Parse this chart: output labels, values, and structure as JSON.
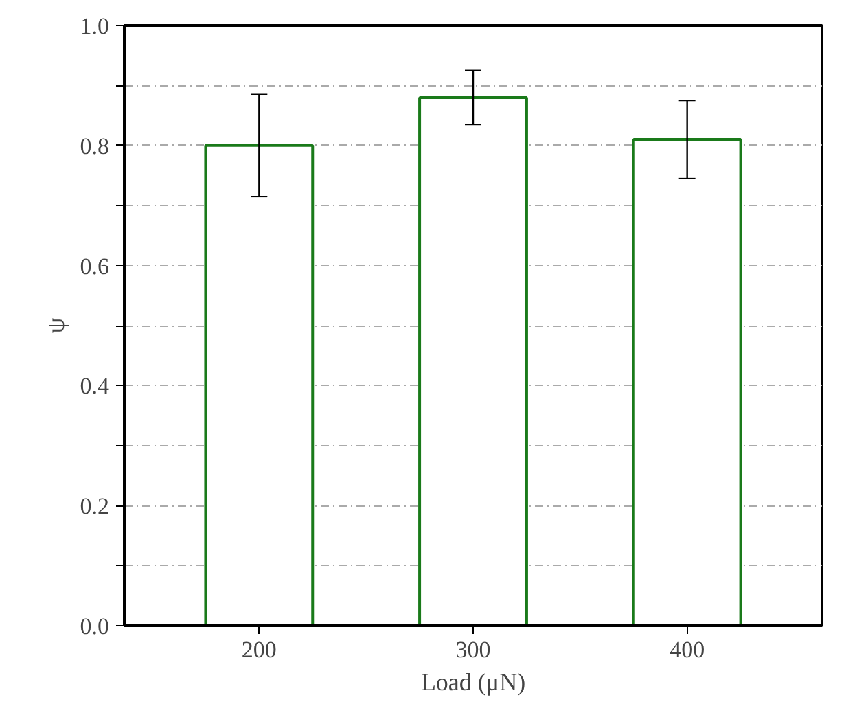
{
  "chart_data": {
    "type": "bar",
    "xlabel": "Load (μN)",
    "ylabel": "ψ",
    "categories": [
      "200",
      "300",
      "400"
    ],
    "values": [
      0.8,
      0.88,
      0.81
    ],
    "errors": [
      0.085,
      0.045,
      0.065
    ],
    "color": "#1a7a1a",
    "ylim": [
      0,
      1.0
    ],
    "yticks": [
      {
        "value": 0,
        "label": "0.0"
      },
      {
        "value": 0.1,
        "label": null
      },
      0.2,
      {
        "value": 0.3,
        "label": null
      },
      0.4,
      {
        "value": 0.5,
        "label": null
      },
      0.6,
      {
        "value": 0.7,
        "label": null
      },
      0.8,
      {
        "value": 0.9,
        "label": null
      },
      {
        "value": 1,
        "label": "1.0"
      }
    ],
    "grid": "y"
  }
}
